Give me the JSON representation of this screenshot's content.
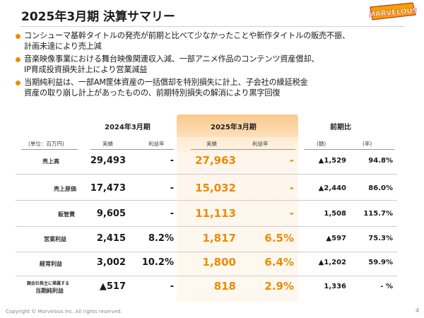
{
  "title": "2025年3月期 決算サマリー",
  "logo_text": "MARVELOUS",
  "bullets": [
    [
      "コンシューマ基幹タイトルの発売が前期と比べて少なかったことや新作タイトルの販売不振、",
      "計画未達により売上減"
    ],
    [
      "音楽映像事業における舞台映像関連収入減、一部アニメ作品のコンテンツ資産償却、",
      "IP育成投資損失計上により営業減益"
    ],
    [
      "当期純利益は、一部AM筐体資産の一括償却を特別損失に計上、子会社の繰延税金",
      "資産の取り崩し計上があったものの、前期特別損失の解消により黒字回復"
    ]
  ],
  "table": {
    "col_groups": {
      "fy2024": "2024年3月期",
      "fy2025": "2025年3月期",
      "yoy": "前期比"
    },
    "unit_note": "(単位：百万円)",
    "sub_headers": {
      "result": "実績",
      "margin": "利益率",
      "amount": "(額)",
      "rate": "(率)"
    },
    "rows": [
      {
        "label": "売上高",
        "fy2024": "29,493",
        "fy2024_margin": "-",
        "fy2025": "27,963",
        "fy2025_margin": "-",
        "diff": "▲1,529",
        "rate": "94.8%"
      },
      {
        "label": "売上原価",
        "fy2024": "17,473",
        "fy2024_margin": "-",
        "fy2025": "15,032",
        "fy2025_margin": "-",
        "diff": "▲2,440",
        "rate": "86.0%"
      },
      {
        "label": "販管費",
        "fy2024": "9,605",
        "fy2024_margin": "-",
        "fy2025": "11,113",
        "fy2025_margin": "-",
        "diff": "1,508",
        "rate": "115.7%"
      },
      {
        "label": "営業利益",
        "fy2024": "2,415",
        "fy2024_margin": "8.2%",
        "fy2025": "1,817",
        "fy2025_margin": "6.5%",
        "diff": "▲597",
        "rate": "75.3%"
      },
      {
        "label": "経常利益",
        "fy2024": "3,002",
        "fy2024_margin": "10.2%",
        "fy2025": "1,800",
        "fy2025_margin": "6.4%",
        "diff": "▲1,202",
        "rate": "59.9%"
      },
      {
        "label_line1": "親会社株主に帰属する",
        "label_line2": "当期純利益",
        "fy2024": "▲517",
        "fy2024_margin": "-",
        "fy2025": "818",
        "fy2025_margin": "2.9%",
        "diff": "1,336",
        "rate": "- %"
      }
    ]
  },
  "footer": "Copyright © Marvelous Inc. All rights reserved.",
  "page_number": "4",
  "colors": {
    "accent": "#ee8a00",
    "bullet": "#f08a00",
    "highlight": "#fde6c6",
    "logo_fill": "#f5a000",
    "logo_stroke": "#c0392b"
  }
}
